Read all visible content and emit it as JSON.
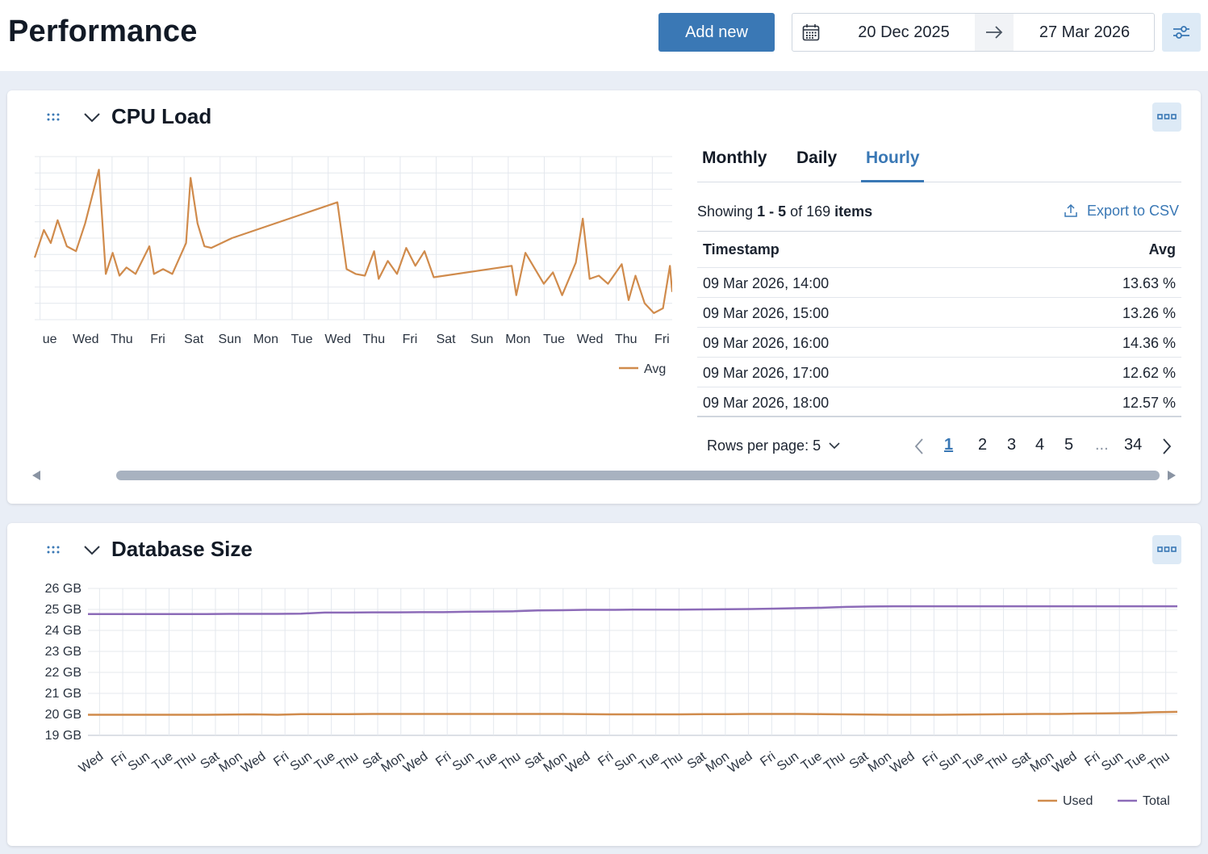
{
  "header": {
    "title": "Performance",
    "add_button": "Add new",
    "date_start": "20 Dec 2025",
    "date_end": "27 Mar 2026"
  },
  "cpu": {
    "title": "CPU Load",
    "tabs": [
      "Monthly",
      "Daily",
      "Hourly"
    ],
    "active_tab": "Hourly",
    "showing": {
      "prefix": "Showing",
      "range": "1 - 5",
      "of": "of 169",
      "suffix": "items"
    },
    "export_label": "Export to CSV",
    "table": {
      "headers": [
        "Timestamp",
        "Avg"
      ],
      "rows": [
        [
          "09 Mar 2026, 14:00",
          "13.63 %"
        ],
        [
          "09 Mar 2026, 15:00",
          "13.26 %"
        ],
        [
          "09 Mar 2026, 16:00",
          "14.36 %"
        ],
        [
          "09 Mar 2026, 17:00",
          "12.62 %"
        ],
        [
          "09 Mar 2026, 18:00",
          "12.57 %"
        ]
      ]
    },
    "rows_per_page": "Rows per page: 5",
    "pages": [
      "1",
      "2",
      "3",
      "4",
      "5"
    ],
    "ellipsis": "...",
    "last_page": "34",
    "current_page": "1"
  },
  "db": {
    "title": "Database Size"
  },
  "chart_data": [
    {
      "type": "line",
      "title": "CPU Load",
      "x": [
        "ue",
        "Wed",
        "Thu",
        "Fri",
        "Sat",
        "Sun",
        "Mon",
        "Tue",
        "Wed",
        "Thu",
        "Fri",
        "Sat",
        "Sun",
        "Mon",
        "Tue",
        "Wed",
        "Thu",
        "Fri"
      ],
      "series": [
        {
          "name": "Avg",
          "color": "#d08b4c",
          "values": [
            [
              0.0,
              0.38
            ],
            [
              0.2,
              0.55
            ],
            [
              0.35,
              0.47
            ],
            [
              0.5,
              0.61
            ],
            [
              0.7,
              0.45
            ],
            [
              0.9,
              0.42
            ],
            [
              1.1,
              0.59
            ],
            [
              1.4,
              0.92
            ],
            [
              1.55,
              0.28
            ],
            [
              1.7,
              0.41
            ],
            [
              1.85,
              0.27
            ],
            [
              2.0,
              0.32
            ],
            [
              2.2,
              0.28
            ],
            [
              2.5,
              0.45
            ],
            [
              2.6,
              0.28
            ],
            [
              2.8,
              0.31
            ],
            [
              3.0,
              0.28
            ],
            [
              3.3,
              0.47
            ],
            [
              3.4,
              0.87
            ],
            [
              3.55,
              0.59
            ],
            [
              3.7,
              0.45
            ],
            [
              3.85,
              0.44
            ],
            [
              4.3,
              0.5
            ],
            [
              6.6,
              0.72
            ],
            [
              6.8,
              0.31
            ],
            [
              7.0,
              0.28
            ],
            [
              7.2,
              0.27
            ],
            [
              7.4,
              0.42
            ],
            [
              7.5,
              0.25
            ],
            [
              7.7,
              0.36
            ],
            [
              7.9,
              0.28
            ],
            [
              8.1,
              0.44
            ],
            [
              8.3,
              0.33
            ],
            [
              8.5,
              0.42
            ],
            [
              8.7,
              0.26
            ],
            [
              10.4,
              0.33
            ],
            [
              10.5,
              0.15
            ],
            [
              10.7,
              0.41
            ],
            [
              11.1,
              0.22
            ],
            [
              11.3,
              0.29
            ],
            [
              11.5,
              0.15
            ],
            [
              11.8,
              0.35
            ],
            [
              11.95,
              0.62
            ],
            [
              12.1,
              0.25
            ],
            [
              12.3,
              0.27
            ],
            [
              12.5,
              0.22
            ],
            [
              12.8,
              0.34
            ],
            [
              12.95,
              0.12
            ],
            [
              13.1,
              0.27
            ],
            [
              13.3,
              0.1
            ],
            [
              13.5,
              0.04
            ],
            [
              13.7,
              0.07
            ],
            [
              13.85,
              0.33
            ],
            [
              13.9,
              0.17
            ]
          ]
        }
      ],
      "legend": "bottom-right",
      "grid": true
    },
    {
      "type": "line",
      "title": "Database Size",
      "ylabels": [
        "19 GB",
        "20 GB",
        "21 GB",
        "22 GB",
        "23 GB",
        "24 GB",
        "25 GB",
        "26 GB"
      ],
      "ylim": [
        19,
        26
      ],
      "x": [
        "Wed",
        "Fri",
        "Sun",
        "Tue",
        "Thu",
        "Sat",
        "Mon",
        "Wed",
        "Fri",
        "Sun",
        "Tue",
        "Thu",
        "Sat",
        "Mon",
        "Wed",
        "Fri",
        "Sun",
        "Tue",
        "Thu",
        "Sat",
        "Mon",
        "Wed",
        "Fri",
        "Sun",
        "Tue",
        "Thu",
        "Sat",
        "Mon",
        "Wed",
        "Fri",
        "Sun",
        "Tue",
        "Thu",
        "Sat",
        "Mon",
        "Wed",
        "Fri",
        "Sun",
        "Tue",
        "Thu",
        "Sat",
        "Mon",
        "Wed",
        "Fri",
        "Sun",
        "Tue",
        "Thu"
      ],
      "series": [
        {
          "name": "Used",
          "color": "#d08b4c",
          "values": [
            19.98,
            19.98,
            19.98,
            19.98,
            19.98,
            19.98,
            19.99,
            20.0,
            19.98,
            20.01,
            20.01,
            20.01,
            20.02,
            20.02,
            20.02,
            20.02,
            20.02,
            20.02,
            20.02,
            20.02,
            20.02,
            20.01,
            20.0,
            20.0,
            20.0,
            20.0,
            20.01,
            20.01,
            20.02,
            20.02,
            20.02,
            20.01,
            20.0,
            19.99,
            19.98,
            19.98,
            19.98,
            19.99,
            20.0,
            20.01,
            20.02,
            20.02,
            20.04,
            20.05,
            20.06,
            20.1,
            20.12
          ]
        },
        {
          "name": "Total",
          "color": "#8c6bb8",
          "values": [
            24.78,
            24.78,
            24.78,
            24.78,
            24.78,
            24.78,
            24.79,
            24.79,
            24.79,
            24.8,
            24.85,
            24.85,
            24.86,
            24.86,
            24.87,
            24.87,
            24.89,
            24.9,
            24.91,
            24.95,
            24.96,
            24.98,
            24.98,
            24.99,
            24.99,
            24.99,
            25.0,
            25.01,
            25.02,
            25.04,
            25.06,
            25.08,
            25.12,
            25.14,
            25.15,
            25.15,
            25.15,
            25.15,
            25.15,
            25.15,
            25.15,
            25.15,
            25.15,
            25.15,
            25.15,
            25.15,
            25.15
          ]
        }
      ],
      "legend": "bottom-right",
      "grid": true
    }
  ]
}
